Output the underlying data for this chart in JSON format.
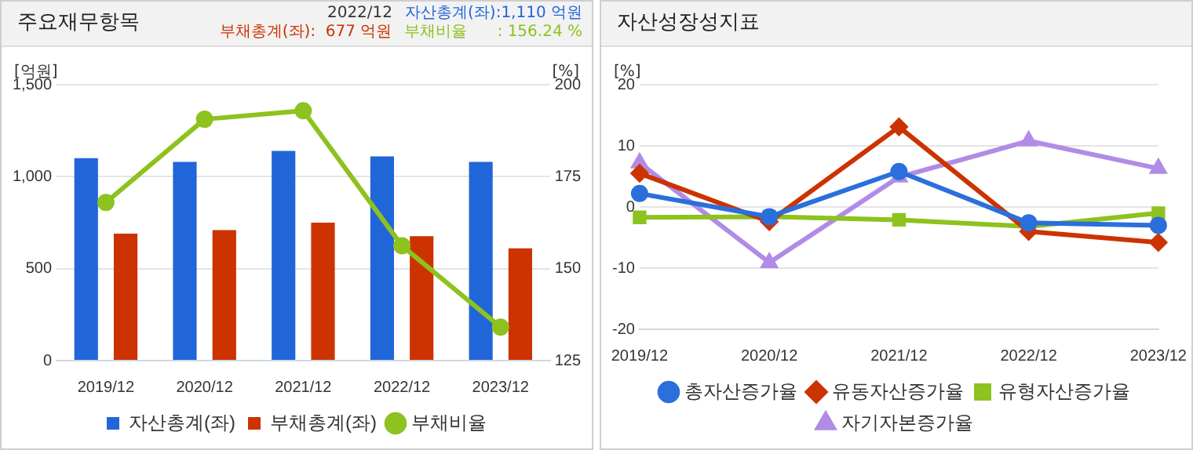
{
  "chart_data": [
    {
      "type": "bar",
      "title": "주요재무항목",
      "ylabel": "[억원]",
      "y2label": "[%]",
      "categories": [
        "2019/12",
        "2020/12",
        "2021/12",
        "2022/12",
        "2023/12"
      ],
      "series": [
        {
          "name": "자산총계(좌)",
          "type": "bar",
          "color": "#2166d9",
          "values": [
            1100,
            1080,
            1140,
            1110,
            1080
          ]
        },
        {
          "name": "부채총계(좌)",
          "type": "bar",
          "color": "#cc3300",
          "values": [
            690,
            710,
            750,
            677,
            610
          ]
        },
        {
          "name": "부채비율",
          "type": "line",
          "axis": "y2",
          "marker": "circle",
          "color": "#8dc21f",
          "values": [
            168,
            190.6,
            192.9,
            156.24,
            134.1
          ]
        }
      ],
      "ylim": [
        0,
        1500
      ],
      "yticks": [
        0,
        500,
        {
          "value": 1000,
          "label": "1,000"
        },
        {
          "value": 1500,
          "label": "1,500"
        }
      ],
      "y2lim": [
        125,
        200
      ],
      "y2ticks": [
        125,
        150,
        175,
        200
      ],
      "annotations": [
        "2022/12",
        "자산총계(좌):1,110 억원",
        "부채총계(좌):  677 억원",
        "부채비율      : 156.24 %"
      ],
      "grid": "y",
      "legend": "bottom"
    },
    {
      "type": "line",
      "title": "자산성장성지표",
      "ylabel": "[%]",
      "categories": [
        "2019/12",
        "2020/12",
        "2021/12",
        "2022/12",
        "2023/12"
      ],
      "series": [
        {
          "name": "총자산증가율",
          "marker": "circle",
          "color": "#2a6fdb",
          "values": [
            2.2,
            -1.6,
            5.8,
            -2.6,
            -3.0
          ]
        },
        {
          "name": "유동자산증가율",
          "marker": "diamond",
          "color": "#cc3300",
          "values": [
            5.5,
            -2.4,
            13.1,
            -4.0,
            -5.8
          ]
        },
        {
          "name": "유형자산증가율",
          "marker": "square",
          "color": "#8dc21f",
          "values": [
            -1.7,
            -1.6,
            -2.1,
            -3.2,
            -1.0
          ]
        },
        {
          "name": "자기자본증가율",
          "marker": "triangle",
          "color": "#b18ce6",
          "values": [
            7.2,
            -9.1,
            4.9,
            10.8,
            6.3
          ]
        }
      ],
      "ylim": [
        -20,
        20
      ],
      "yticks": [
        -20,
        -10,
        0,
        10,
        20
      ],
      "grid": "y",
      "legend": "bottom"
    }
  ]
}
